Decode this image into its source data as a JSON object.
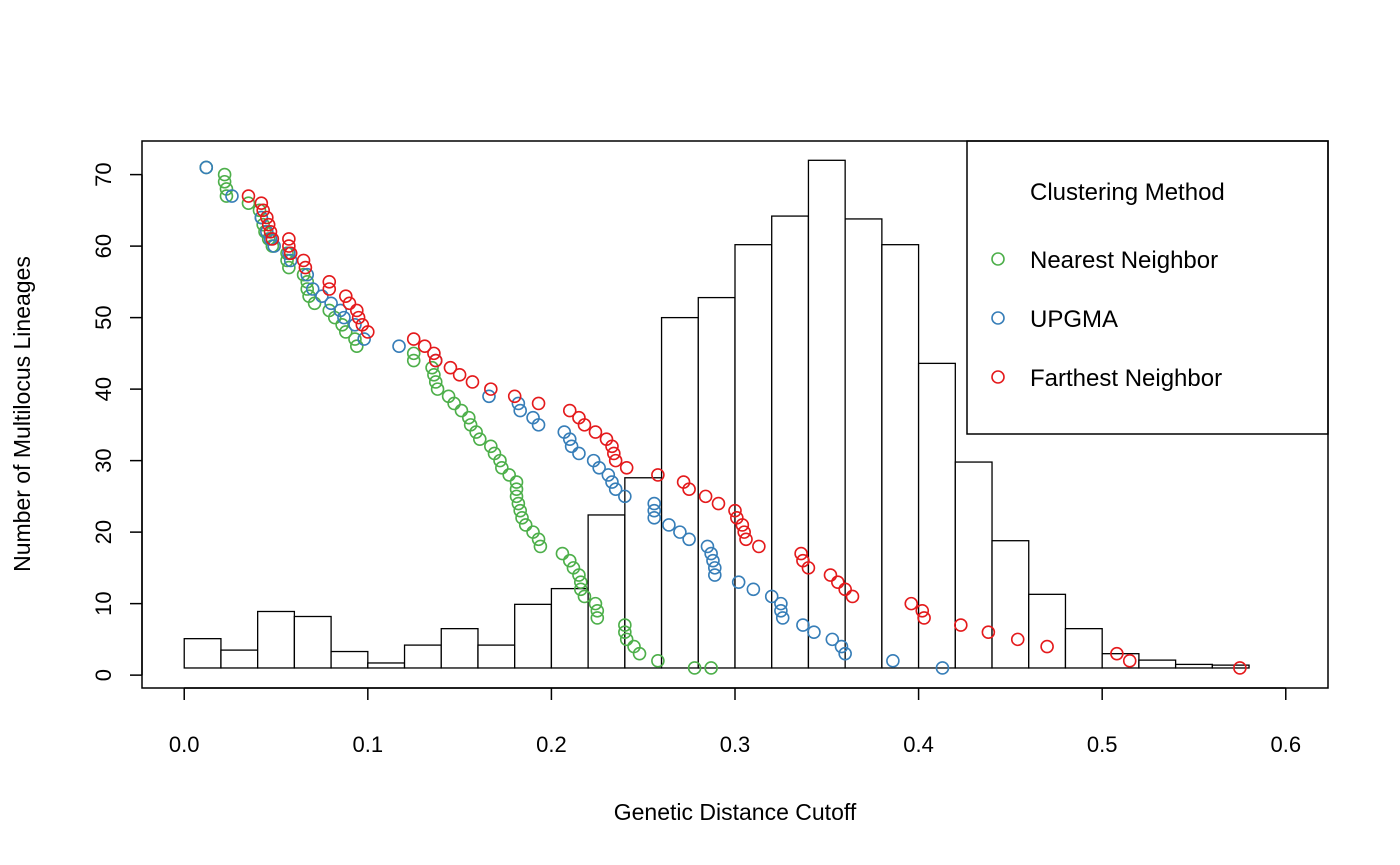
{
  "chart_data": {
    "type": "scatter",
    "title": "",
    "xlabel": "Genetic Distance Cutoff",
    "ylabel": "Number of Multilocus Lineages",
    "xlim": [
      -0.023,
      0.623
    ],
    "ylim": [
      -1.8,
      74.7
    ],
    "x_ticks": [
      0.0,
      0.1,
      0.2,
      0.3,
      0.4,
      0.5,
      0.6
    ],
    "x_tick_labels": [
      "0.0",
      "0.1",
      "0.2",
      "0.3",
      "0.4",
      "0.5",
      "0.6"
    ],
    "y_ticks": [
      0,
      10,
      20,
      30,
      40,
      50,
      60,
      70
    ],
    "y_tick_labels": [
      "0",
      "10",
      "20",
      "30",
      "40",
      "50",
      "60",
      "70"
    ],
    "grid": false,
    "legend": {
      "title": "Clustering Method",
      "position": "top-right",
      "entries": [
        "Nearest Neighbor",
        "UPGMA",
        "Farthest Neighbor"
      ]
    },
    "histogram": {
      "bin_width": 0.02,
      "bin_starts": [
        0.0,
        0.02,
        0.04,
        0.06,
        0.08,
        0.1,
        0.12,
        0.14,
        0.16,
        0.18,
        0.2,
        0.22,
        0.24,
        0.26,
        0.28,
        0.3,
        0.32,
        0.34,
        0.36,
        0.38,
        0.4,
        0.42,
        0.44,
        0.46,
        0.48,
        0.5,
        0.52,
        0.54,
        0.56
      ],
      "heights": [
        5.1,
        3.5,
        8.9,
        8.2,
        3.3,
        1.7,
        4.2,
        6.5,
        4.2,
        9.9,
        12.1,
        22.4,
        27.6,
        50.0,
        52.8,
        60.2,
        64.2,
        72.0,
        63.8,
        60.2,
        43.6,
        29.8,
        18.8,
        11.3,
        6.5,
        3.0,
        2.1,
        1.5,
        1.4
      ]
    },
    "series": [
      {
        "name": "Nearest Neighbor",
        "color": "#4DAF4A",
        "x": [
          0.012,
          0.022,
          0.022,
          0.023,
          0.023,
          0.035,
          0.041,
          0.042,
          0.043,
          0.044,
          0.046,
          0.048,
          0.056,
          0.056,
          0.057,
          0.065,
          0.067,
          0.067,
          0.068,
          0.071,
          0.079,
          0.082,
          0.086,
          0.088,
          0.093,
          0.094,
          0.125,
          0.125,
          0.135,
          0.136,
          0.137,
          0.138,
          0.144,
          0.147,
          0.151,
          0.155,
          0.156,
          0.159,
          0.161,
          0.167,
          0.169,
          0.172,
          0.173,
          0.177,
          0.181,
          0.181,
          0.181,
          0.182,
          0.183,
          0.184,
          0.186,
          0.19,
          0.193,
          0.194,
          0.206,
          0.21,
          0.212,
          0.215,
          0.216,
          0.216,
          0.218,
          0.224,
          0.225,
          0.225,
          0.24,
          0.24,
          0.241,
          0.245,
          0.248,
          0.258,
          0.278,
          0.287
        ],
        "y": [
          71,
          70,
          69,
          68,
          67,
          66,
          65,
          64,
          63,
          62,
          61,
          60,
          59,
          58,
          57,
          56,
          55,
          54,
          53,
          52,
          51,
          50,
          49,
          48,
          47,
          46,
          45,
          44,
          43,
          42,
          41,
          40,
          39,
          38,
          37,
          36,
          35,
          34,
          33,
          32,
          31,
          30,
          29,
          28,
          27,
          26,
          25,
          24,
          23,
          22,
          21,
          20,
          19,
          18,
          17,
          16,
          15,
          14,
          13,
          12,
          11,
          10,
          9,
          8,
          7,
          6,
          5,
          4,
          3,
          2,
          1,
          1
        ]
      },
      {
        "name": "UPGMA",
        "color": "#377EB8",
        "x": [
          0.012,
          0.026,
          0.042,
          0.045,
          0.047,
          0.049,
          0.057,
          0.058,
          0.067,
          0.07,
          0.075,
          0.08,
          0.085,
          0.087,
          0.093,
          0.098,
          0.117,
          0.137,
          0.166,
          0.182,
          0.183,
          0.19,
          0.193,
          0.207,
          0.21,
          0.211,
          0.215,
          0.223,
          0.226,
          0.231,
          0.233,
          0.235,
          0.24,
          0.256,
          0.256,
          0.256,
          0.264,
          0.27,
          0.275,
          0.285,
          0.287,
          0.288,
          0.289,
          0.289,
          0.302,
          0.31,
          0.32,
          0.325,
          0.325,
          0.326,
          0.337,
          0.343,
          0.353,
          0.358,
          0.36,
          0.386,
          0.413
        ],
        "y": [
          71,
          67,
          64,
          62,
          61,
          60,
          59,
          58,
          56,
          54,
          53,
          52,
          51,
          50,
          49,
          47,
          46,
          44,
          39,
          38,
          37,
          36,
          35,
          34,
          33,
          32,
          31,
          30,
          29,
          28,
          27,
          26,
          25,
          24,
          23,
          22,
          21,
          20,
          19,
          18,
          17,
          16,
          15,
          14,
          13,
          12,
          11,
          10,
          9,
          8,
          7,
          6,
          5,
          4,
          3,
          2,
          1
        ]
      },
      {
        "name": "Farthest Neighbor",
        "color": "#E41A1C",
        "x": [
          0.035,
          0.042,
          0.043,
          0.045,
          0.046,
          0.047,
          0.048,
          0.057,
          0.057,
          0.058,
          0.065,
          0.066,
          0.079,
          0.079,
          0.088,
          0.09,
          0.094,
          0.095,
          0.097,
          0.1,
          0.125,
          0.131,
          0.136,
          0.137,
          0.145,
          0.15,
          0.157,
          0.167,
          0.18,
          0.193,
          0.21,
          0.215,
          0.218,
          0.224,
          0.23,
          0.233,
          0.234,
          0.235,
          0.241,
          0.258,
          0.272,
          0.275,
          0.284,
          0.291,
          0.3,
          0.301,
          0.304,
          0.305,
          0.306,
          0.313,
          0.336,
          0.337,
          0.34,
          0.352,
          0.356,
          0.36,
          0.364,
          0.396,
          0.402,
          0.403,
          0.423,
          0.438,
          0.454,
          0.47,
          0.508,
          0.515,
          0.575
        ],
        "y": [
          67,
          66,
          65,
          64,
          63,
          62,
          61,
          61,
          60,
          59,
          58,
          57,
          55,
          54,
          53,
          52,
          51,
          50,
          49,
          48,
          47,
          46,
          45,
          44,
          43,
          42,
          41,
          40,
          39,
          38,
          37,
          36,
          35,
          34,
          33,
          32,
          31,
          30,
          29,
          28,
          27,
          26,
          25,
          24,
          23,
          22,
          21,
          20,
          19,
          18,
          17,
          16,
          15,
          14,
          13,
          12,
          11,
          10,
          9,
          8,
          7,
          6,
          5,
          4,
          3,
          2,
          1
        ]
      }
    ]
  }
}
